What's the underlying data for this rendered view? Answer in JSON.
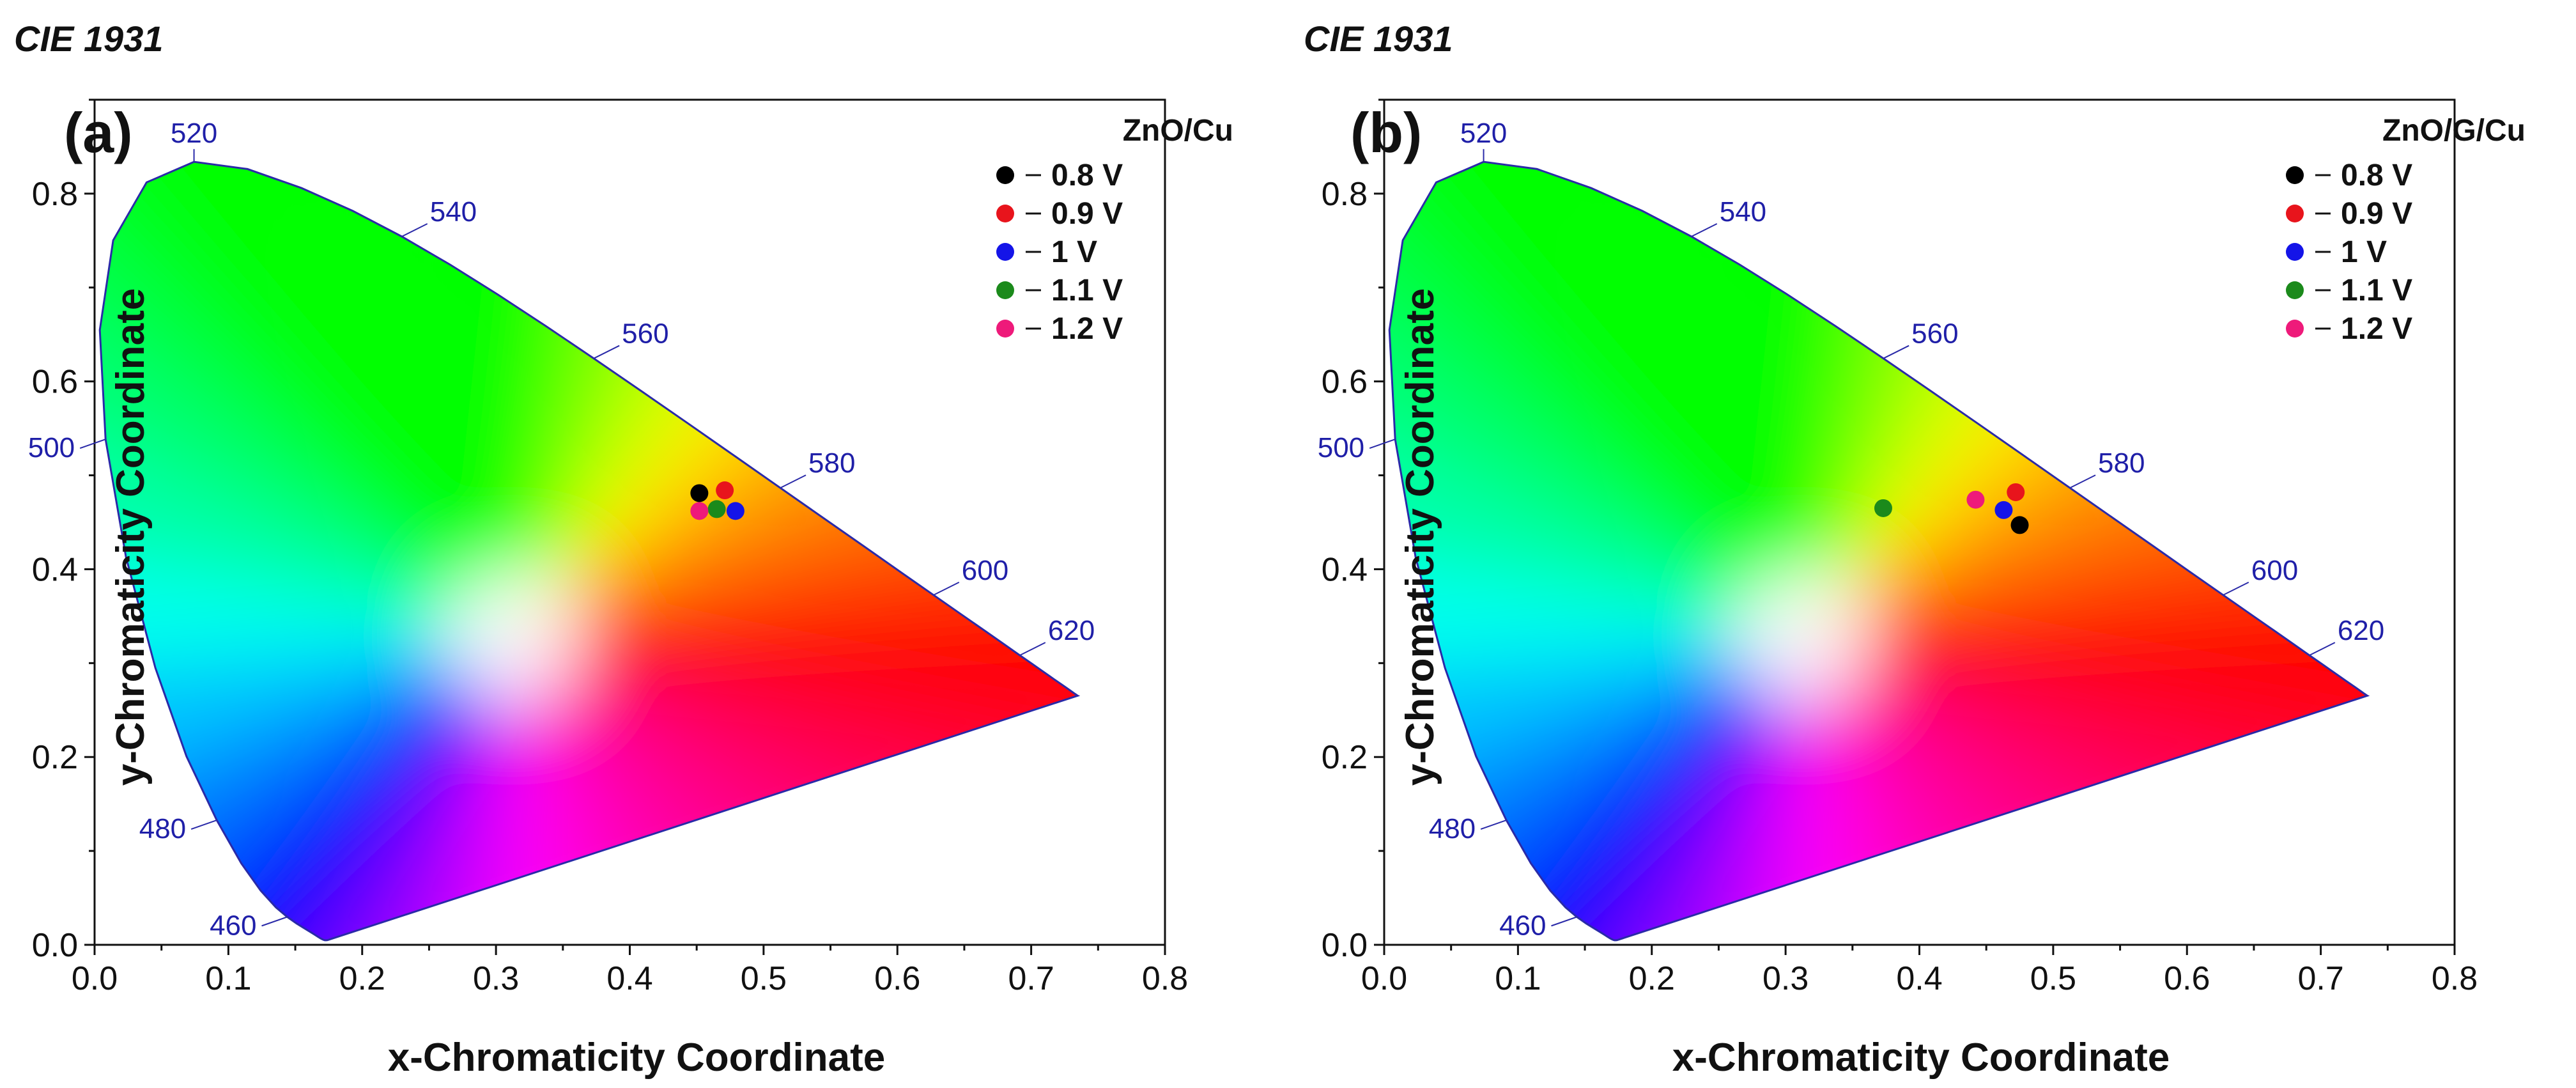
{
  "chart_data": [
    {
      "type": "scatter",
      "header": "CIE 1931",
      "panel_label": "(a)",
      "xlabel": "x-Chromaticity Coordinate",
      "ylabel": "y-Chromaticity Coordinate",
      "xlim": [
        0.0,
        0.8
      ],
      "ylim": [
        0.0,
        0.9
      ],
      "x_ticks": [
        "0.0",
        "0.1",
        "0.2",
        "0.3",
        "0.4",
        "0.5",
        "0.6",
        "0.7",
        "0.8"
      ],
      "y_ticks": [
        "0.0",
        "0.2",
        "0.4",
        "0.6",
        "0.8"
      ],
      "wavelength_labels": [
        "460",
        "480",
        "500",
        "520",
        "540",
        "560",
        "580",
        "600",
        "620"
      ],
      "legend_title": "ZnO/Cu",
      "series": [
        {
          "name": "0.8 V",
          "color": "#000000",
          "x": 0.452,
          "y": 0.481
        },
        {
          "name": "0.9 V",
          "color": "#e8141c",
          "x": 0.471,
          "y": 0.484
        },
        {
          "name": "1 V",
          "color": "#1414e8",
          "x": 0.479,
          "y": 0.462
        },
        {
          "name": "1.1 V",
          "color": "#1b8a1b",
          "x": 0.465,
          "y": 0.464
        },
        {
          "name": "1.2 V",
          "color": "#ee1a7a",
          "x": 0.452,
          "y": 0.462
        }
      ]
    },
    {
      "type": "scatter",
      "header": "CIE 1931",
      "panel_label": "(b)",
      "xlabel": "x-Chromaticity Coordinate",
      "ylabel": "y-Chromaticity Coordinate",
      "xlim": [
        0.0,
        0.8
      ],
      "ylim": [
        0.0,
        0.9
      ],
      "x_ticks": [
        "0.0",
        "0.1",
        "0.2",
        "0.3",
        "0.4",
        "0.5",
        "0.6",
        "0.7",
        "0.8"
      ],
      "y_ticks": [
        "0.0",
        "0.2",
        "0.4",
        "0.6",
        "0.8"
      ],
      "wavelength_labels": [
        "460",
        "480",
        "500",
        "520",
        "540",
        "560",
        "580",
        "600",
        "620"
      ],
      "legend_title": "ZnO/G/Cu",
      "series": [
        {
          "name": "0.8 V",
          "color": "#000000",
          "x": 0.475,
          "y": 0.447
        },
        {
          "name": "0.9 V",
          "color": "#e8141c",
          "x": 0.472,
          "y": 0.482
        },
        {
          "name": "1 V",
          "color": "#1414e8",
          "x": 0.463,
          "y": 0.463
        },
        {
          "name": "1.1 V",
          "color": "#1b8a1b",
          "x": 0.373,
          "y": 0.465
        },
        {
          "name": "1.2 V",
          "color": "#ee1a7a",
          "x": 0.442,
          "y": 0.474
        }
      ]
    }
  ]
}
